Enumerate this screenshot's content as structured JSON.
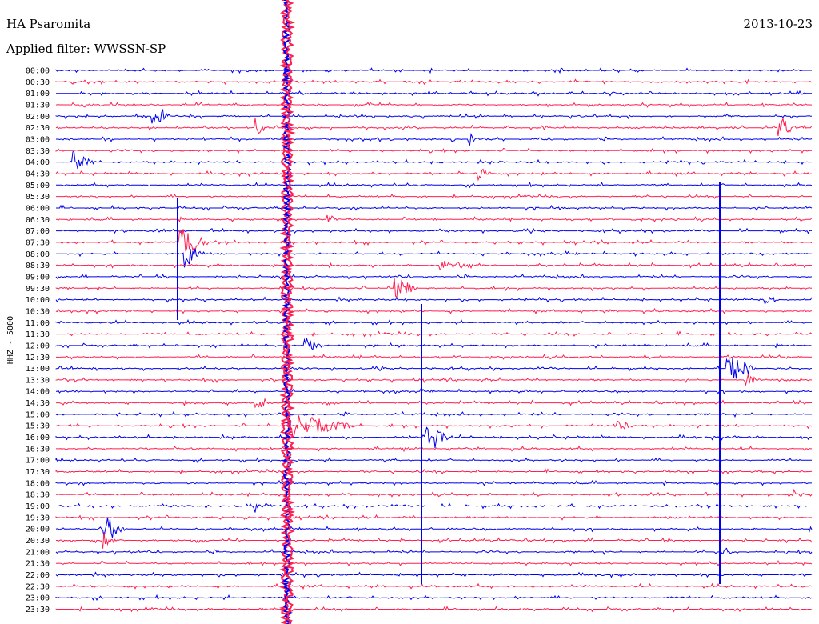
{
  "header": {
    "station": "HA Psaromita",
    "date": "2013-10-23",
    "filter": "Applied filter: WWSSN-SP"
  },
  "chart_data": {
    "type": "line",
    "title": "HA Psaromita",
    "ylabel": "HHZ - 5000",
    "row_labels": [
      "00:00",
      "00:30",
      "01:00",
      "01:30",
      "02:00",
      "02:30",
      "03:00",
      "03:30",
      "04:00",
      "04:30",
      "05:00",
      "05:30",
      "06:00",
      "06:30",
      "07:00",
      "07:30",
      "08:00",
      "08:30",
      "09:00",
      "09:30",
      "10:00",
      "10:30",
      "11:00",
      "11:30",
      "12:00",
      "12:30",
      "13:00",
      "13:30",
      "14:00",
      "14:30",
      "15:00",
      "15:30",
      "16:00",
      "16:30",
      "17:00",
      "17:30",
      "18:00",
      "18:30",
      "19:00",
      "19:30",
      "20:00",
      "20:30",
      "21:00",
      "21:30",
      "22:00",
      "22:30",
      "23:00",
      "23:30"
    ],
    "colors": [
      "#0000ee",
      "#ff1e50"
    ]
  }
}
